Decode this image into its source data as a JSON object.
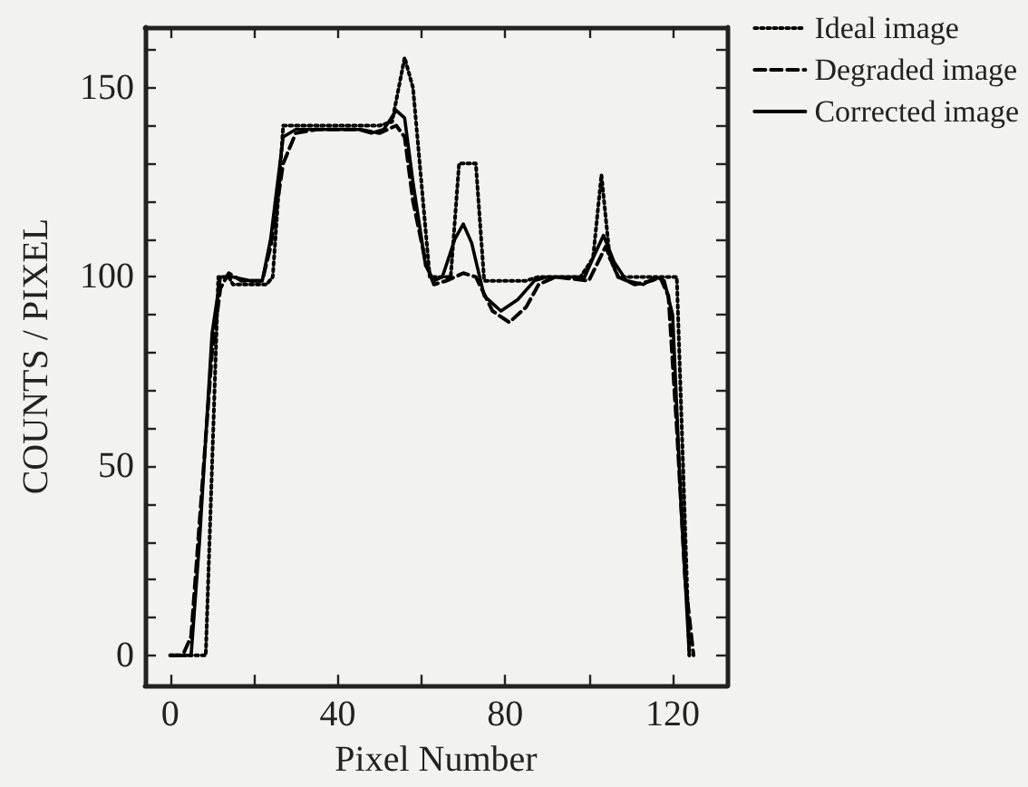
{
  "chart_data": {
    "type": "line",
    "xlabel": "Pixel Number",
    "ylabel": "COUNTS / PIXEL",
    "xlim": [
      -6,
      133
    ],
    "ylim": [
      -8,
      166
    ],
    "xticks": [
      0,
      {
        "value": 20,
        "label": null
      },
      40,
      {
        "value": 60,
        "label": null
      },
      80,
      {
        "value": 100,
        "label": null
      },
      120
    ],
    "yticks": [
      0,
      {
        "value": 10,
        "label": null
      },
      {
        "value": 20,
        "label": null
      },
      {
        "value": 30,
        "label": null
      },
      {
        "value": 40,
        "label": null
      },
      50,
      {
        "value": 60,
        "label": null
      },
      {
        "value": 70,
        "label": null
      },
      {
        "value": 80,
        "label": null
      },
      {
        "value": 90,
        "label": null
      },
      100,
      {
        "value": 110,
        "label": null
      },
      {
        "value": 120,
        "label": null
      },
      {
        "value": 130,
        "label": null
      },
      {
        "value": 140,
        "label": null
      },
      150,
      {
        "value": 160,
        "label": null
      }
    ],
    "grid": false,
    "legend": "top right",
    "marker": "none",
    "series": [
      {
        "name": "Ideal image",
        "color": "#000000",
        "line_style": "dotted",
        "x": [
          0,
          8.5,
          11.5,
          14,
          15,
          23,
          24.5,
          27,
          50,
          53,
          56,
          58,
          62,
          67,
          69,
          73,
          75,
          85,
          88,
          98,
          101,
          103,
          105,
          107,
          120,
          121,
          124
        ],
        "values": [
          0,
          0,
          100,
          100,
          98,
          98,
          100,
          140,
          140,
          141,
          158,
          150,
          100,
          100,
          130,
          130,
          99,
          99,
          100,
          100,
          105,
          127,
          105,
          100,
          100,
          100,
          0
        ]
      },
      {
        "name": "Degraded image",
        "color": "#000000",
        "line_style": "dashed",
        "x": [
          0,
          3,
          5,
          7,
          10,
          12,
          14,
          17,
          22,
          24,
          27,
          30,
          35,
          45,
          50,
          54,
          56,
          58,
          61,
          63,
          66,
          70,
          73,
          77,
          81,
          85,
          88,
          92,
          100,
          104,
          107,
          111,
          115,
          117,
          119,
          121,
          123,
          125
        ],
        "values": [
          0,
          0,
          5,
          35,
          80,
          97,
          101,
          99,
          99,
          108,
          130,
          138,
          139,
          139,
          138,
          140,
          137,
          120,
          104,
          98,
          99,
          101,
          100,
          91,
          88,
          92,
          98,
          100,
          99,
          108,
          100,
          98,
          99,
          100,
          95,
          60,
          20,
          0
        ]
      },
      {
        "name": "Corrected image",
        "color": "#000000",
        "line_style": "solid",
        "x": [
          0,
          5,
          7,
          10,
          12,
          15,
          19,
          22,
          24,
          27,
          30,
          45,
          48,
          51,
          54,
          56,
          58,
          61,
          63,
          65,
          68,
          70,
          72,
          75,
          79,
          83,
          87,
          90,
          99,
          101,
          103.5,
          106,
          109,
          113,
          116,
          118,
          120,
          122,
          124
        ],
        "values": [
          0,
          0,
          30,
          85,
          100,
          100,
          99,
          99,
          110,
          137,
          139,
          139,
          138,
          139,
          144,
          142,
          125,
          103,
          99,
          100,
          110,
          114,
          109,
          95,
          91,
          94,
          99,
          100,
          100,
          105,
          111,
          104,
          99,
          98,
          100,
          99,
          90,
          40,
          0
        ]
      }
    ]
  }
}
